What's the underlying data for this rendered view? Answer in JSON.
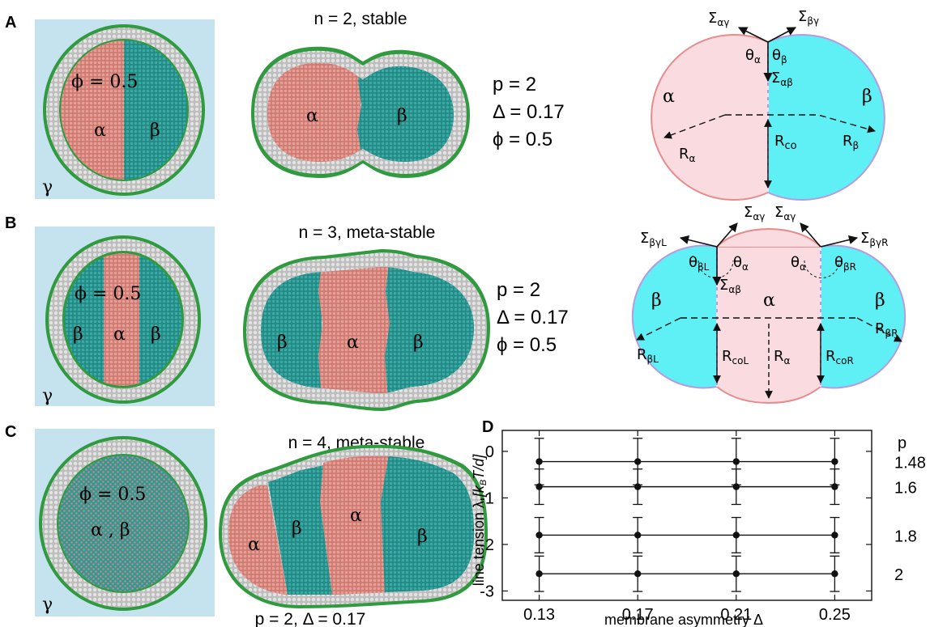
{
  "panels": {
    "A": {
      "label": "A",
      "caption": "n = 2, stable",
      "phi_label": "ϕ = 0.5",
      "domains_left": [
        "α",
        "β"
      ],
      "domains_right": [
        "α",
        "β"
      ],
      "gamma": "γ",
      "params": [
        "p = 2",
        "Δ = 0.17",
        "ϕ = 0.5"
      ],
      "schematic": {
        "alpha": "α",
        "beta": "β",
        "sigma_ag_sym": "Σ",
        "sigma_ag_sub": "αγ",
        "sigma_bg_sym": "Σ",
        "sigma_bg_sub": "βγ",
        "sigma_ab_sym": "Σ",
        "sigma_ab_sub": "αβ",
        "theta_a_sym": "θ",
        "theta_a_sub": "α",
        "theta_b_sym": "θ",
        "theta_b_sub": "β",
        "r_a_sym": "R",
        "r_a_sub": "α",
        "r_b_sym": "R",
        "r_b_sub": "β",
        "r_co": "R",
        "r_co_sub": "co"
      }
    },
    "B": {
      "label": "B",
      "caption": "n = 3, meta-stable",
      "phi_label": "ϕ = 0.5",
      "domains_left": [
        "β",
        "α",
        "β"
      ],
      "domains_right": [
        "β",
        "α",
        "β"
      ],
      "gamma": "γ",
      "params": [
        "p = 2",
        "Δ = 0.17",
        "ϕ = 0.5"
      ],
      "schematic": {
        "alpha": "α",
        "beta_l": "β",
        "beta_r": "β",
        "s_bgl_sym": "Σ",
        "s_bgl_sub": "βγL",
        "s_ag1_sym": "Σ",
        "s_ag1_sub": "αγ",
        "s_ag2_sym": "Σ",
        "s_ag2_sub": "αγ",
        "s_bgr_sym": "Σ",
        "s_bgr_sub": "βγR",
        "s_ab_sym": "Σ",
        "s_ab_sub": "αβ",
        "t_bl_sym": "θ",
        "t_bl_sub": "βL",
        "t_a1_sym": "θ",
        "t_a1_sub": "α",
        "t_a2_sym": "θ",
        "t_a2_sub": "α",
        "t_br_sym": "θ",
        "t_br_sub": "βR",
        "r_bl_sym": "R",
        "r_bl_sub": "βL",
        "r_col_sym": "R",
        "r_col_sub": "coL",
        "r_a_sym": "R",
        "r_a_sub": "α",
        "r_cor_sym": "R",
        "r_cor_sub": "coR",
        "r_br_sym": "R",
        "r_br_sub": "βR"
      }
    },
    "C": {
      "label": "C",
      "caption": "n = 4, meta-stable",
      "phi_label": "ϕ = 0.5",
      "mixed_label": "α , β",
      "domains_right": [
        "α",
        "β",
        "α",
        "β"
      ],
      "gamma": "γ",
      "params_line": "p = 2, Δ = 0.17"
    },
    "D": {
      "label": "D",
      "p_header": "p"
    }
  },
  "colors": {
    "alpha": "#d8847c",
    "beta": "#2e9a96",
    "alpha_light": "#f9dbe0",
    "beta_light": "#5ef0f4",
    "rim_gray": "#bdbdbd",
    "rim_green": "#2f9a3e",
    "bg_box": "#c5e3ee"
  },
  "chart_data": {
    "type": "line",
    "xlabel": "membrane asymmetry Δ",
    "ylabel_main": "line tension λ ",
    "ylabel_units": "[k",
    "ylabel_units_sub": "B",
    "ylabel_units_rest": "T/d]",
    "x": [
      0.13,
      0.17,
      0.21,
      0.25
    ],
    "xtick_labels": [
      "0.13",
      "0.17",
      "0.21",
      "0.25"
    ],
    "xlim": [
      0.115,
      0.265
    ],
    "ylim": [
      -3.2,
      0.45
    ],
    "yticks": [
      0,
      -1,
      -2,
      -3
    ],
    "ytick_labels": [
      "0",
      "-1",
      "-2",
      "-3"
    ],
    "series": [
      {
        "name": "1.48",
        "values": [
          -0.22,
          -0.22,
          -0.22,
          -0.22
        ],
        "err": [
          0.5,
          0.5,
          0.5,
          0.5
        ]
      },
      {
        "name": "1.6",
        "values": [
          -0.76,
          -0.76,
          -0.76,
          -0.76
        ],
        "err": [
          0.38,
          0.38,
          0.38,
          0.38
        ]
      },
      {
        "name": "1.8",
        "values": [
          -1.8,
          -1.8,
          -1.8,
          -1.8
        ],
        "err": [
          0.38,
          0.38,
          0.38,
          0.38
        ]
      },
      {
        "name": "2",
        "values": [
          -2.63,
          -2.63,
          -2.63,
          -2.63
        ],
        "err": [
          0.38,
          0.38,
          0.38,
          0.38
        ]
      }
    ]
  }
}
